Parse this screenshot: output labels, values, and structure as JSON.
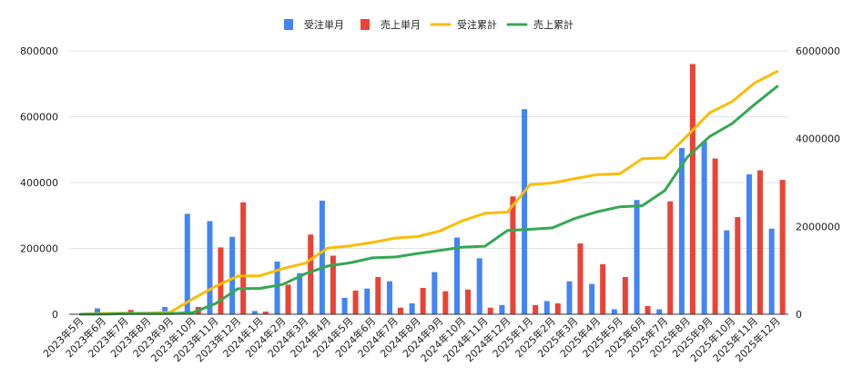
{
  "chart_data": {
    "type": "bar+line",
    "categories": [
      "2023年5月",
      "2023年6月",
      "2023年7月",
      "2023年8月",
      "2023年9月",
      "2023年10月",
      "2023年11月",
      "2023年12月",
      "2024年1月",
      "2024年2月",
      "2024年3月",
      "2024年4月",
      "2024年5月",
      "2024年6月",
      "2024年7月",
      "2024年8月",
      "2024年9月",
      "2024年10月",
      "2024年11月",
      "2024年12月",
      "2025年1月",
      "2025年2月",
      "2025年3月",
      "2025年4月",
      "2025年5月",
      "2025年6月",
      "2025年7月",
      "2025年8月",
      "2025年9月",
      "2025年10月",
      "2025年11月",
      "2025年12月"
    ],
    "series": [
      {
        "name": "受注単月",
        "type": "bar",
        "axis": "left",
        "color": "#4285f4",
        "values": [
          0,
          18000,
          5000,
          0,
          22000,
          305000,
          283000,
          235000,
          10000,
          160000,
          125000,
          345000,
          50000,
          78000,
          100000,
          33000,
          128000,
          233000,
          170000,
          28000,
          623000,
          40000,
          100000,
          92000,
          15000,
          347000,
          15000,
          505000,
          525000,
          255000,
          425000,
          260000
        ]
      },
      {
        "name": "売上単月",
        "type": "bar",
        "axis": "left",
        "color": "#ea4335",
        "values": [
          0,
          3000,
          13000,
          0,
          0,
          22000,
          203000,
          340000,
          8000,
          90000,
          242000,
          178000,
          72000,
          113000,
          20000,
          80000,
          70000,
          75000,
          20000,
          358000,
          28000,
          33000,
          215000,
          152000,
          113000,
          25000,
          343000,
          760000,
          473000,
          295000,
          437000,
          408000
        ]
      },
      {
        "name": "受注累計",
        "type": "line",
        "axis": "right",
        "color": "#fbbc04",
        "values": [
          0,
          18000,
          23000,
          23000,
          45000,
          350000,
          633000,
          868000,
          878000,
          1038000,
          1163000,
          1508000,
          1558000,
          1636000,
          1736000,
          1769000,
          1897000,
          2130000,
          2300000,
          2328000,
          2951000,
          2991000,
          3091000,
          3183000,
          3198000,
          3545000,
          3560000,
          4065000,
          4590000,
          4845000,
          5270000,
          5530000
        ]
      },
      {
        "name": "売上累計",
        "type": "line",
        "axis": "right",
        "color": "#34a853",
        "values": [
          0,
          3000,
          16000,
          16000,
          16000,
          38000,
          241000,
          581000,
          589000,
          679000,
          921000,
          1099000,
          1171000,
          1284000,
          1304000,
          1384000,
          1454000,
          1529000,
          1549000,
          1907000,
          1935000,
          1968000,
          2183000,
          2335000,
          2448000,
          2473000,
          2816000,
          3576000,
          4049000,
          4344000,
          4781000,
          5189000
        ]
      }
    ],
    "y_left": {
      "min": 0,
      "max": 800000,
      "ticks": [
        "0",
        "200000",
        "400000",
        "600000",
        "800000"
      ]
    },
    "y_right": {
      "min": 0,
      "max": 6000000,
      "ticks": [
        "0",
        "2000000",
        "4000000",
        "6000000"
      ]
    },
    "legend": "top-center",
    "grid": true
  }
}
